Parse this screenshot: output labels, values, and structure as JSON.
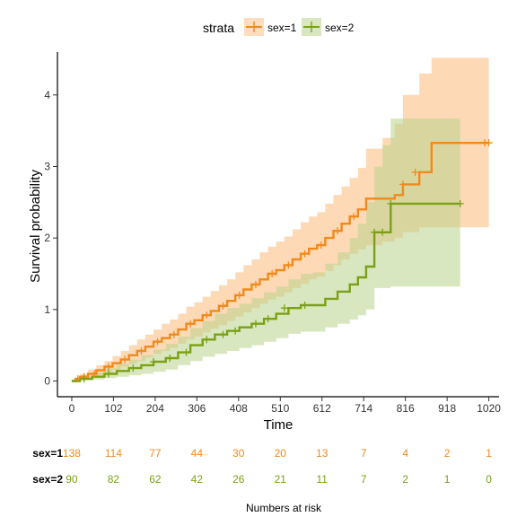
{
  "chart_data": {
    "type": "line",
    "xlabel": "Time",
    "ylabel": "Survival probability",
    "xlim": [
      -35,
      1045
    ],
    "ylim": [
      -0.22,
      4.6
    ],
    "xticks": [
      0,
      102,
      204,
      306,
      408,
      510,
      612,
      714,
      816,
      918,
      1020
    ],
    "yticks": [
      0,
      1,
      2,
      3,
      4
    ],
    "grid": false,
    "legend": {
      "title": "strata",
      "position": "top",
      "entries": [
        "sex=1",
        "sex=2"
      ]
    },
    "colors": {
      "sex=1": "#f08a1c",
      "sex=2": "#7aa114",
      "band_sex=1": "#fdbf86",
      "band_sex=2": "#b8d48a"
    },
    "series": [
      {
        "name": "sex=1",
        "x": [
          0,
          10,
          20,
          40,
          60,
          80,
          100,
          120,
          140,
          160,
          180,
          200,
          220,
          240,
          260,
          280,
          300,
          320,
          340,
          360,
          380,
          400,
          420,
          440,
          460,
          480,
          500,
          520,
          540,
          560,
          580,
          600,
          620,
          640,
          660,
          680,
          700,
          720,
          760,
          790,
          810,
          850,
          880,
          1020
        ],
        "y": [
          0,
          0.03,
          0.06,
          0.1,
          0.15,
          0.2,
          0.25,
          0.3,
          0.36,
          0.42,
          0.48,
          0.55,
          0.6,
          0.65,
          0.72,
          0.8,
          0.85,
          0.92,
          0.98,
          1.05,
          1.12,
          1.2,
          1.28,
          1.35,
          1.42,
          1.5,
          1.55,
          1.62,
          1.7,
          1.78,
          1.85,
          1.9,
          2.0,
          2.1,
          2.2,
          2.3,
          2.4,
          2.55,
          2.55,
          2.6,
          2.75,
          2.92,
          3.33,
          3.33
        ],
        "lower": [
          0,
          0.01,
          0.02,
          0.05,
          0.08,
          0.12,
          0.16,
          0.2,
          0.24,
          0.28,
          0.33,
          0.38,
          0.42,
          0.46,
          0.52,
          0.58,
          0.62,
          0.68,
          0.73,
          0.78,
          0.84,
          0.9,
          0.96,
          1.02,
          1.08,
          1.14,
          1.18,
          1.24,
          1.3,
          1.36,
          1.42,
          1.46,
          1.54,
          1.62,
          1.7,
          1.78,
          1.84,
          1.9,
          1.95,
          2.0,
          2.08,
          2.15,
          2.15,
          2.15
        ],
        "upper": [
          0,
          0.05,
          0.1,
          0.16,
          0.22,
          0.28,
          0.35,
          0.42,
          0.5,
          0.58,
          0.65,
          0.72,
          0.8,
          0.86,
          0.94,
          1.04,
          1.1,
          1.18,
          1.26,
          1.34,
          1.42,
          1.52,
          1.62,
          1.7,
          1.8,
          1.88,
          1.95,
          2.02,
          2.12,
          2.22,
          2.3,
          2.36,
          2.48,
          2.6,
          2.72,
          2.84,
          2.98,
          3.25,
          3.4,
          3.6,
          4.0,
          4.3,
          4.52,
          4.52
        ],
        "censor_x": [
          15,
          30,
          55,
          90,
          130,
          170,
          210,
          250,
          290,
          330,
          370,
          410,
          450,
          490,
          530,
          570,
          610,
          650,
          690,
          810,
          840,
          1010,
          1020
        ],
        "censor_y": [
          0.03,
          0.06,
          0.1,
          0.2,
          0.3,
          0.42,
          0.55,
          0.65,
          0.8,
          0.92,
          1.05,
          1.2,
          1.35,
          1.5,
          1.62,
          1.78,
          1.9,
          2.1,
          2.3,
          2.75,
          2.92,
          3.33,
          3.33
        ]
      },
      {
        "name": "sex=2",
        "x": [
          0,
          20,
          50,
          80,
          110,
          140,
          170,
          200,
          230,
          260,
          290,
          320,
          350,
          380,
          410,
          440,
          470,
          500,
          530,
          560,
          590,
          620,
          650,
          680,
          700,
          720,
          740,
          760,
          780,
          950
        ],
        "y": [
          0,
          0.03,
          0.06,
          0.1,
          0.14,
          0.18,
          0.22,
          0.27,
          0.32,
          0.4,
          0.5,
          0.58,
          0.65,
          0.7,
          0.75,
          0.8,
          0.87,
          0.94,
          1.02,
          1.06,
          1.06,
          1.15,
          1.25,
          1.35,
          1.45,
          1.6,
          2.08,
          2.08,
          2.48,
          2.48
        ],
        "lower": [
          0,
          0.01,
          0.02,
          0.04,
          0.06,
          0.08,
          0.1,
          0.13,
          0.16,
          0.22,
          0.28,
          0.34,
          0.38,
          0.42,
          0.46,
          0.5,
          0.55,
          0.6,
          0.66,
          0.69,
          0.69,
          0.75,
          0.8,
          0.86,
          0.92,
          1.0,
          1.3,
          1.3,
          1.32,
          1.32
        ],
        "upper": [
          0,
          0.06,
          0.12,
          0.18,
          0.24,
          0.3,
          0.36,
          0.44,
          0.52,
          0.62,
          0.74,
          0.84,
          0.94,
          1.02,
          1.08,
          1.16,
          1.24,
          1.32,
          1.42,
          1.5,
          1.52,
          1.64,
          1.8,
          2.0,
          2.2,
          2.5,
          3.0,
          3.3,
          3.67,
          3.67
        ],
        "censor_x": [
          30,
          90,
          150,
          200,
          240,
          280,
          330,
          370,
          400,
          450,
          480,
          520,
          570,
          740,
          760,
          780,
          950
        ],
        "censor_y": [
          0.03,
          0.1,
          0.18,
          0.27,
          0.32,
          0.4,
          0.58,
          0.65,
          0.7,
          0.8,
          0.87,
          1.02,
          1.06,
          2.08,
          2.08,
          2.48,
          2.48
        ]
      }
    ],
    "risk_table": {
      "title": "Numbers at risk",
      "times": [
        0,
        102,
        204,
        306,
        408,
        510,
        612,
        714,
        816,
        918,
        1020
      ],
      "rows": [
        {
          "label": "sex=1",
          "values": [
            "138",
            "114",
            "77",
            "44",
            "30",
            "20",
            "13",
            "7",
            "4",
            "2",
            "1"
          ]
        },
        {
          "label": "sex=2",
          "values": [
            "90",
            "82",
            "62",
            "42",
            "26",
            "21",
            "11",
            "7",
            "2",
            "1",
            "0"
          ]
        }
      ]
    }
  }
}
